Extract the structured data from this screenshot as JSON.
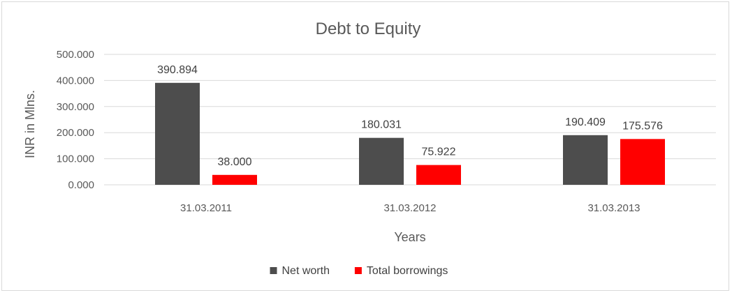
{
  "chart_data": {
    "type": "bar",
    "title": "Debt to Equity",
    "xlabel": "Years",
    "ylabel": "INR in Mlns.",
    "categories": [
      "31.03.2011",
      "31.03.2012",
      "31.03.2013"
    ],
    "series": [
      {
        "name": "Net worth",
        "values": [
          390.894,
          180.031,
          190.409
        ],
        "labels": [
          "390.894",
          "180.031",
          "190.409"
        ],
        "color": "#4d4d4d"
      },
      {
        "name": "Total borrowings",
        "values": [
          38.0,
          75.922,
          175.576
        ],
        "labels": [
          "38.000",
          "75.922",
          "175.576"
        ],
        "color": "#ff0000"
      }
    ],
    "ylim": [
      0,
      500
    ],
    "yticks": [
      "0.000",
      "100.000",
      "200.000",
      "300.000",
      "400.000",
      "500.000"
    ],
    "grid": true,
    "legend_position": "bottom"
  }
}
